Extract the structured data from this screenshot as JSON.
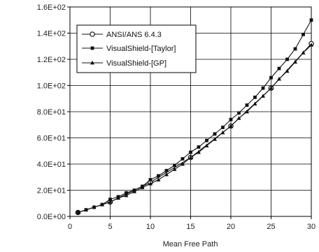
{
  "chart_data": {
    "type": "line",
    "title": "",
    "xlabel": "Mean Free Path",
    "ylabel": "",
    "xlim": [
      0,
      30
    ],
    "ylim": [
      0,
      160
    ],
    "x_ticks": [
      0,
      5,
      10,
      15,
      20,
      25,
      30
    ],
    "x_tick_labels": [
      "0",
      "5",
      "10",
      "15",
      "20",
      "25",
      "30"
    ],
    "y_ticks": [
      0,
      20,
      40,
      60,
      80,
      100,
      120,
      140,
      160
    ],
    "y_tick_labels": [
      "0.0E+00",
      "2.0E+01",
      "4.0E+01",
      "6.0E+01",
      "8.0E+01",
      "1.0E+02",
      "1.2E+02",
      "1.4E+02",
      "1.6E+02"
    ],
    "grid": true,
    "legend_position": "top-left",
    "series": [
      {
        "name": "ANSI/ANS 6.4.3",
        "marker": "circle",
        "x": [
          1,
          5,
          10,
          15,
          20,
          25,
          30
        ],
        "values": [
          3,
          11,
          26,
          45,
          69,
          98,
          132
        ]
      },
      {
        "name": "VisualShield-[Taylor]",
        "marker": "square",
        "x": [
          1,
          2,
          3,
          4,
          5,
          6,
          7,
          8,
          9,
          10,
          11,
          12,
          13,
          14,
          15,
          16,
          17,
          18,
          19,
          20,
          21,
          22,
          23,
          24,
          25,
          26,
          27,
          28,
          29,
          30
        ],
        "values": [
          3,
          5,
          7,
          9,
          13,
          15,
          18,
          20,
          23,
          28,
          31,
          35,
          39,
          44,
          49,
          53,
          58,
          63,
          68,
          74,
          79,
          85,
          91,
          98,
          106,
          113,
          120,
          128,
          139,
          150
        ]
      },
      {
        "name": "VisualShield-[GP]",
        "marker": "triangle",
        "x": [
          1,
          2,
          3,
          4,
          5,
          6,
          7,
          8,
          9,
          10,
          11,
          12,
          13,
          14,
          15,
          16,
          17,
          18,
          19,
          20,
          21,
          22,
          23,
          24,
          25,
          26,
          27,
          28,
          29,
          30
        ],
        "values": [
          3,
          5,
          7,
          9,
          11,
          14,
          16,
          19,
          22,
          25,
          28,
          32,
          36,
          40,
          45,
          49,
          54,
          59,
          64,
          69,
          75,
          80,
          86,
          92,
          98,
          105,
          111,
          118,
          125,
          131
        ]
      }
    ]
  }
}
